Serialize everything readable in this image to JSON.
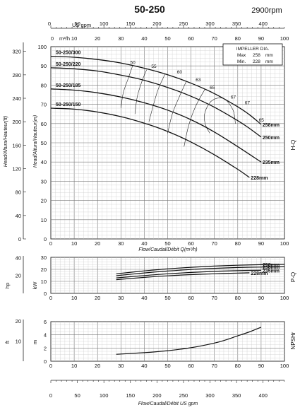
{
  "title": "50-250",
  "speed": "2900rpm",
  "impeller_box": {
    "title": "IMPELLER DIA.",
    "max_label": "Max",
    "max_value": "258",
    "min_label": "Min.",
    "min_value": "228",
    "unit": "mm"
  },
  "side_labels": {
    "hq": "H-Q",
    "pq": "P-Q",
    "npshr": "NPSHr"
  },
  "axis_labels": {
    "head_ft": "Head/Altura/Hauteur(ft)",
    "head_m": "Head/Altura/Hauteur(m)",
    "flow_m3h": "Flow/Caudal/Débit Q(m³/h)",
    "flow_usgpm": "Flow/Caudal/Débit  US gpm",
    "power_hp": "hp",
    "power_kw": "kW",
    "npsh_ft": "ft",
    "npsh_m": "m",
    "top_usgpm": "US gpm",
    "top_m3h": "m³/h"
  },
  "ticks": {
    "flow_m3h": [
      "0",
      "10",
      "20",
      "30",
      "40",
      "50",
      "60",
      "70",
      "80",
      "90",
      "100"
    ],
    "usgpm_top": [
      "0",
      "50",
      "100",
      "150",
      "200",
      "250",
      "300",
      "350",
      "400"
    ],
    "usgpm_bottom": [
      "0",
      "50",
      "100",
      "150",
      "200",
      "250",
      "300",
      "350",
      "400"
    ],
    "head_m": [
      "0",
      "10",
      "20",
      "30",
      "40",
      "50",
      "60",
      "70",
      "80",
      "90",
      "100"
    ],
    "head_ft": [
      "0",
      "40",
      "80",
      "120",
      "160",
      "200",
      "240",
      "280",
      "320"
    ],
    "power_kw": [
      "0",
      "10",
      "20",
      "30"
    ],
    "power_hp": [
      "20",
      "40"
    ],
    "npsh_m": [
      "0",
      "2",
      "4",
      "6"
    ],
    "npsh_ft": [
      "10",
      "20"
    ]
  },
  "chart_data": [
    {
      "type": "line",
      "name": "H-Q",
      "xlabel": "Flow/Caudal/Débit Q(m³/h)",
      "ylabel": "Head/Altura/Hauteur(m)",
      "xlim": [
        0,
        100
      ],
      "ylim": [
        0,
        100
      ],
      "series": [
        {
          "name": "50-250/300",
          "label": "258mm",
          "x": [
            0,
            10,
            20,
            30,
            40,
            50,
            60,
            70,
            80,
            85,
            90
          ],
          "y": [
            95,
            94.5,
            93.3,
            91.5,
            88.8,
            85.4,
            81,
            75.6,
            68.7,
            64.6,
            59.6
          ]
        },
        {
          "name": "50-250/220",
          "label": "250mm",
          "x": [
            0,
            10,
            20,
            30,
            40,
            50,
            60,
            70,
            80,
            85,
            90
          ],
          "y": [
            89,
            88.5,
            87.3,
            85.2,
            82.5,
            78.8,
            74.2,
            68.5,
            61.5,
            57.5,
            53
          ]
        },
        {
          "name": "50-250/185",
          "label": "235mm",
          "x": [
            0,
            10,
            20,
            30,
            40,
            50,
            60,
            70,
            80,
            90
          ],
          "y": [
            78,
            77.4,
            76,
            73.8,
            70.8,
            67,
            62,
            55.6,
            48,
            40
          ]
        },
        {
          "name": "50-250/150",
          "label": "228mm",
          "x": [
            0,
            10,
            20,
            30,
            40,
            50,
            60,
            70,
            80,
            85
          ],
          "y": [
            68,
            67.5,
            66,
            63.6,
            60.2,
            55.9,
            50.4,
            43.8,
            36.2,
            32
          ]
        }
      ],
      "efficiency_labels": [
        "50",
        "55",
        "60",
        "63",
        "65",
        "67",
        "67",
        "65"
      ],
      "efficiency_contours": [
        {
          "label": "50",
          "x": [
            30,
            31,
            33,
            35
          ],
          "y": [
            68,
            76,
            83,
            90
          ]
        },
        {
          "label": "55",
          "x": [
            36,
            37,
            39,
            41
          ],
          "y": [
            65,
            74,
            82,
            88
          ]
        },
        {
          "label": "60",
          "x": [
            42,
            44,
            46,
            49
          ],
          "y": [
            61,
            70,
            78,
            86
          ]
        },
        {
          "label": "63",
          "x": [
            50,
            52,
            55,
            58
          ],
          "y": [
            55,
            65,
            74,
            82
          ]
        },
        {
          "label": "65",
          "x": [
            57,
            59,
            62,
            66
          ],
          "y": [
            48,
            59,
            69,
            78
          ]
        },
        {
          "label": "67",
          "x": [
            68,
            66,
            66,
            69,
            74,
            78,
            79
          ],
          "y": [
            55,
            60,
            66,
            72,
            73,
            67,
            60
          ]
        }
      ]
    },
    {
      "type": "line",
      "name": "P-Q",
      "xlabel": "Flow/Caudal/Débit Q(m³/h)",
      "ylabel": "kW",
      "xlim": [
        0,
        100
      ],
      "ylim": [
        0,
        30
      ],
      "series": [
        {
          "label": "258mm",
          "x": [
            28,
            40,
            50,
            60,
            70,
            80,
            90,
            100
          ],
          "y": [
            16.3,
            18.7,
            20.4,
            21.7,
            22.7,
            23.4,
            23.9,
            24.1
          ]
        },
        {
          "label": "250mm",
          "x": [
            28,
            40,
            50,
            60,
            70,
            80,
            90,
            100
          ],
          "y": [
            14.7,
            17,
            18.6,
            19.9,
            20.8,
            21.5,
            21.9,
            22.1
          ]
        },
        {
          "label": "235mm",
          "x": [
            28,
            40,
            50,
            60,
            70,
            80,
            90
          ],
          "y": [
            12.9,
            14.8,
            16.3,
            17.4,
            18.3,
            18.9,
            19.2
          ]
        },
        {
          "label": "228mm",
          "x": [
            28,
            40,
            50,
            60,
            70,
            80,
            85
          ],
          "y": [
            11.4,
            13.3,
            14.6,
            15.6,
            16.3,
            16.9,
            17.1
          ]
        }
      ]
    },
    {
      "type": "line",
      "name": "NPSHr",
      "xlabel": "Flow/Caudal/Débit  US gpm",
      "ylabel": "m",
      "xlim": [
        0,
        100
      ],
      "ylim": [
        0,
        6
      ],
      "series": [
        {
          "x": [
            28,
            40,
            50,
            60,
            70,
            75,
            80,
            85,
            90
          ],
          "y": [
            1.05,
            1.3,
            1.6,
            2.05,
            2.75,
            3.25,
            3.85,
            4.45,
            5.15
          ]
        }
      ]
    }
  ]
}
